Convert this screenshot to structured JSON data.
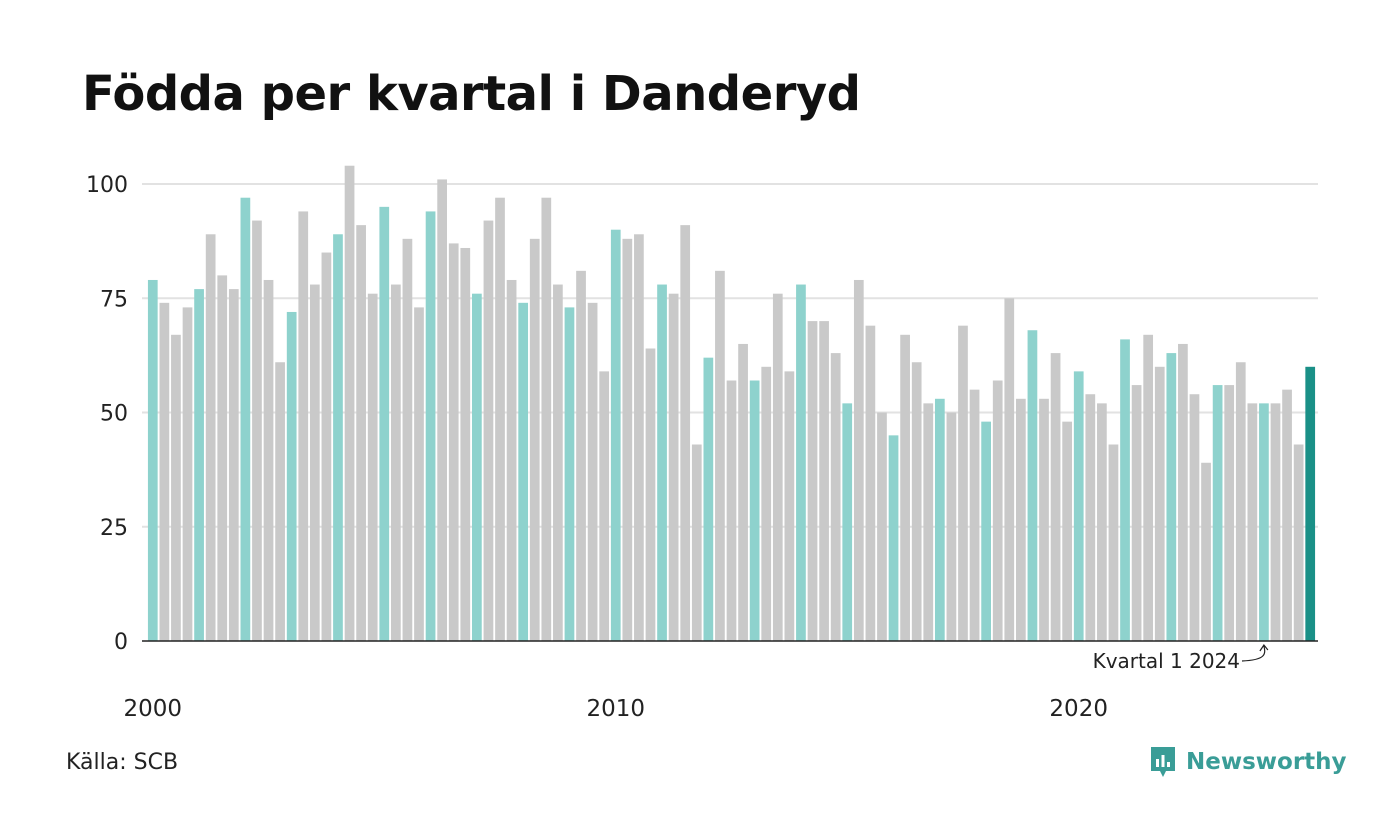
{
  "page": {
    "title": "Födda per kvartal i Danderyd"
  },
  "footer": {
    "source": "Källa: SCB",
    "brand": "Newsworthy"
  },
  "colors": {
    "q1": "#8ed2cd",
    "other": "#c9c9c9",
    "latest": "#1a9087",
    "grid": "#e2e2e2",
    "axis": "#222222"
  },
  "chart_data": {
    "type": "bar",
    "title": "Födda per kvartal i Danderyd",
    "xlabel": "",
    "ylabel": "",
    "ylim": [
      0,
      105
    ],
    "yticks": [
      0,
      25,
      50,
      75,
      100
    ],
    "xtick_labels": [
      "2000",
      "2010",
      "2020"
    ],
    "grid": true,
    "annotation": "Kvartal 1 2024",
    "series": [
      {
        "values": [
          79,
          74,
          67,
          73,
          77,
          89,
          80,
          77,
          97,
          92,
          79,
          61,
          72,
          94,
          78,
          85,
          89,
          104,
          91,
          76,
          95,
          78,
          88,
          73,
          94,
          101,
          87,
          86,
          76,
          92,
          97,
          79,
          74,
          88,
          97,
          78,
          73,
          81,
          74,
          59,
          90,
          88,
          89,
          64,
          78,
          76,
          91,
          43,
          62,
          81,
          57,
          65,
          57,
          60,
          76,
          59,
          78,
          70,
          70,
          63,
          52,
          79,
          69,
          50,
          45,
          67,
          61,
          52,
          53,
          50,
          69,
          55,
          48,
          57,
          75,
          53,
          68,
          53,
          63,
          48,
          59,
          54,
          52,
          43,
          66,
          56,
          67,
          60,
          63,
          65,
          54,
          39,
          56,
          56,
          61,
          52,
          52,
          52,
          55,
          43,
          60
        ]
      }
    ],
    "start_year": 2000
  }
}
